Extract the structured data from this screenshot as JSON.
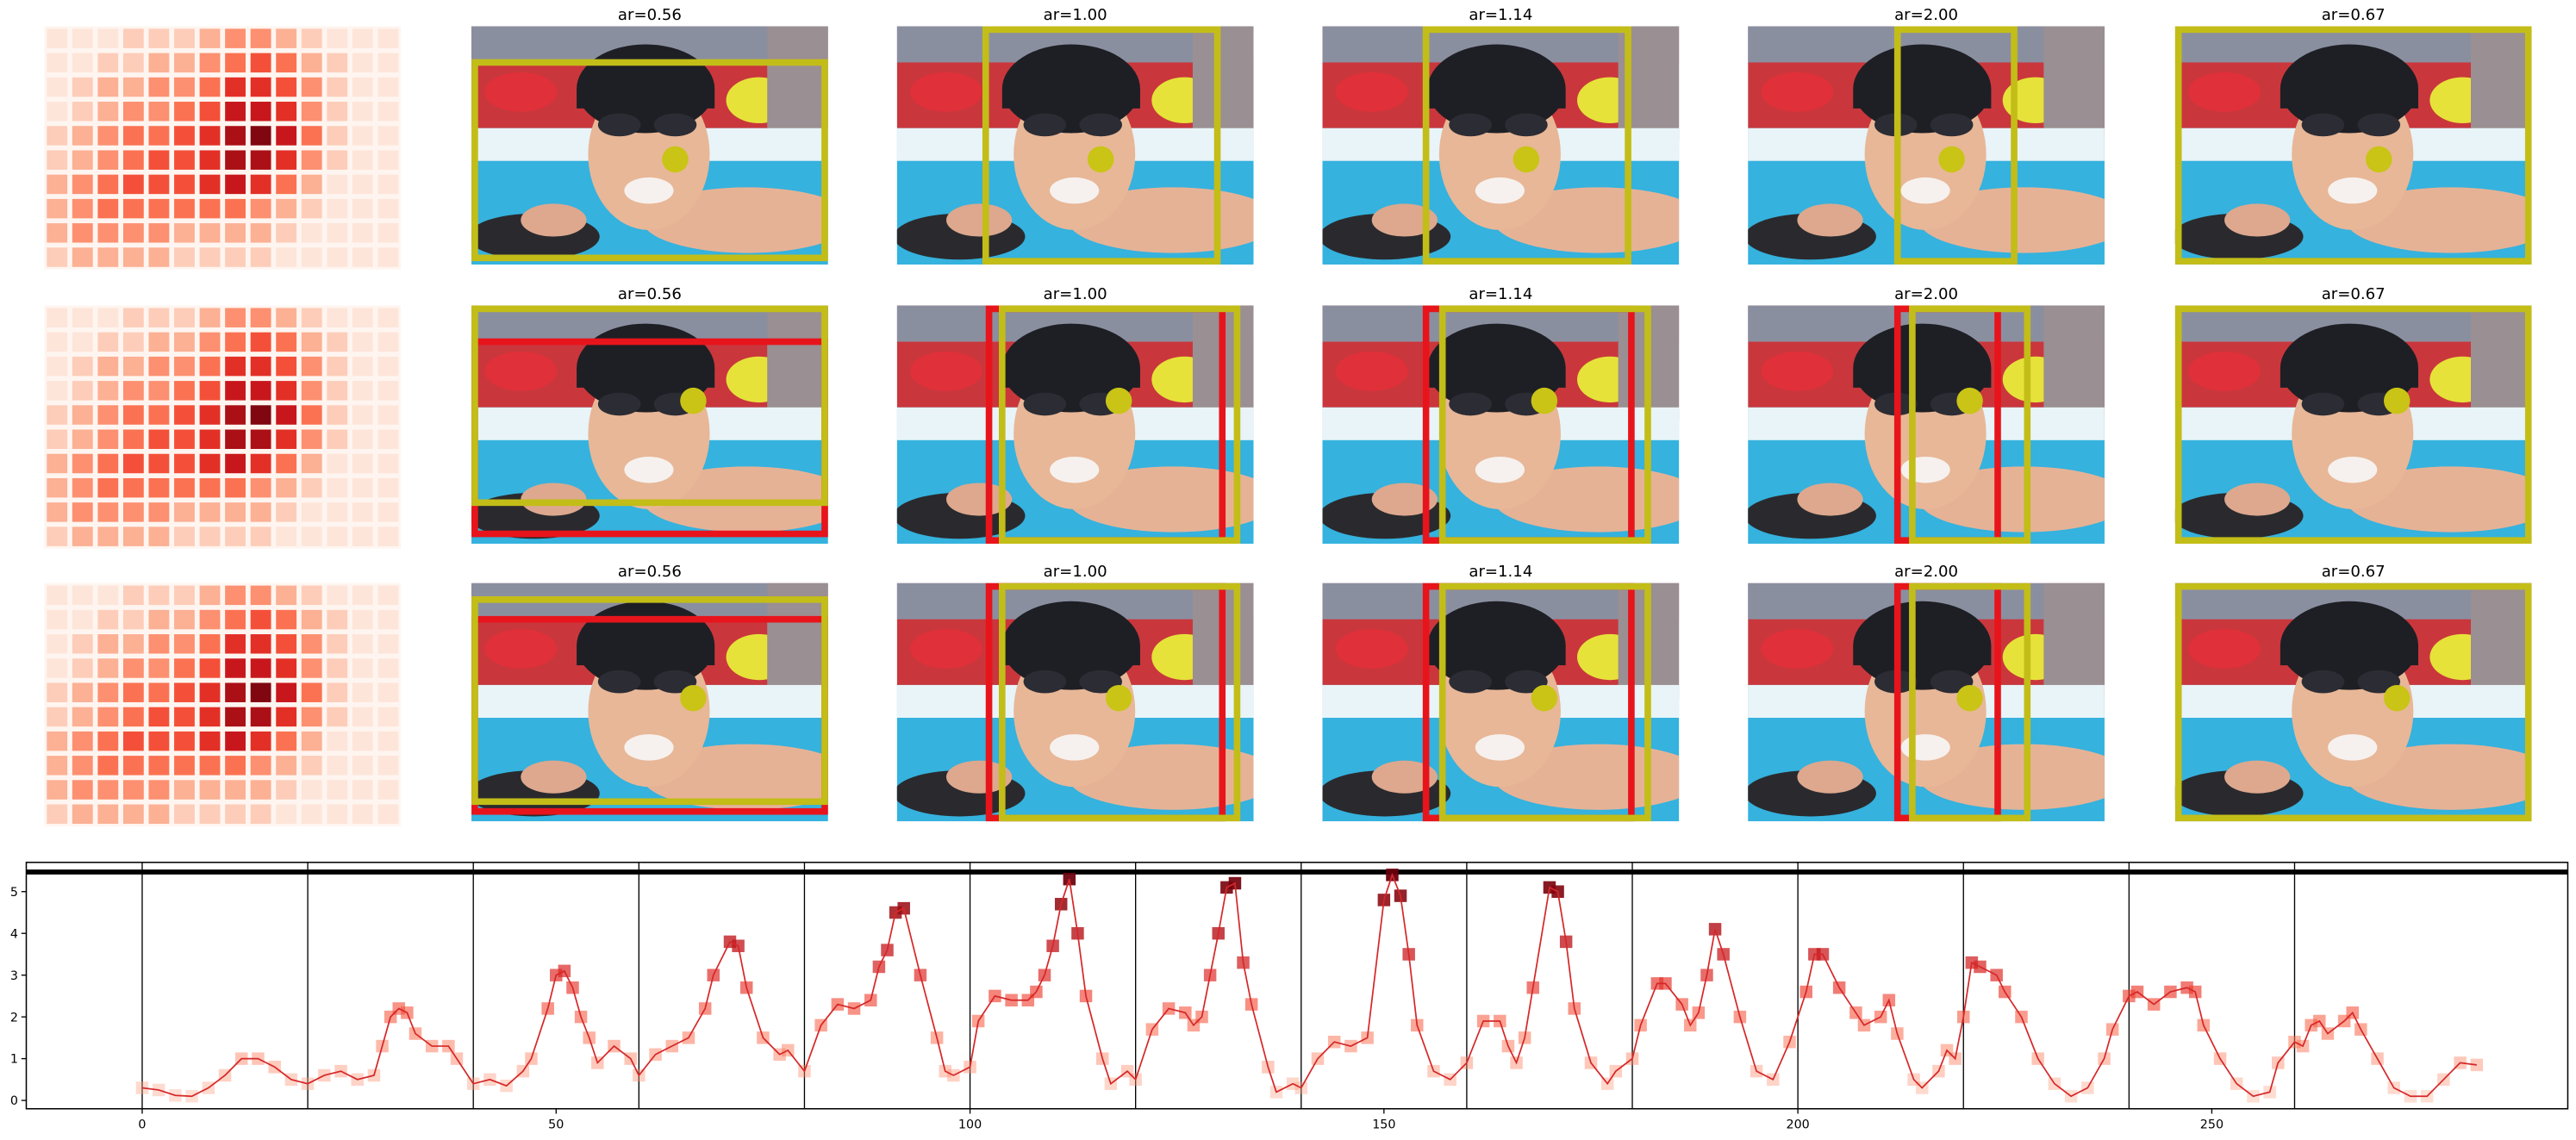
{
  "panel_titles": [
    [
      "ar=0.56",
      "ar=1.00",
      "ar=1.14",
      "ar=2.00",
      "ar=0.67"
    ],
    [
      "ar=0.56",
      "ar=1.00",
      "ar=1.14",
      "ar=2.00",
      "ar=0.67"
    ],
    [
      "ar=0.56",
      "ar=1.00",
      "ar=1.14",
      "ar=2.00",
      "ar=0.67"
    ]
  ],
  "heatmap": [
    [
      0.1,
      0.1,
      0.1,
      0.2,
      0.2,
      0.2,
      0.3,
      0.4,
      0.4,
      0.3,
      0.2,
      0.1,
      0.1,
      0.1
    ],
    [
      0.1,
      0.1,
      0.2,
      0.2,
      0.3,
      0.3,
      0.4,
      0.5,
      0.6,
      0.5,
      0.3,
      0.2,
      0.1,
      0.1
    ],
    [
      0.1,
      0.2,
      0.3,
      0.3,
      0.4,
      0.4,
      0.5,
      0.7,
      0.7,
      0.6,
      0.4,
      0.2,
      0.1,
      0.1
    ],
    [
      0.1,
      0.2,
      0.3,
      0.4,
      0.4,
      0.5,
      0.6,
      0.8,
      0.8,
      0.7,
      0.4,
      0.2,
      0.1,
      0.1
    ],
    [
      0.2,
      0.3,
      0.4,
      0.5,
      0.5,
      0.6,
      0.7,
      0.9,
      1.0,
      0.8,
      0.5,
      0.2,
      0.1,
      0.1
    ],
    [
      0.2,
      0.3,
      0.4,
      0.5,
      0.6,
      0.6,
      0.7,
      0.9,
      0.9,
      0.7,
      0.4,
      0.2,
      0.1,
      0.1
    ],
    [
      0.3,
      0.4,
      0.5,
      0.6,
      0.6,
      0.6,
      0.7,
      0.8,
      0.7,
      0.5,
      0.3,
      0.1,
      0.1,
      0.1
    ],
    [
      0.3,
      0.4,
      0.5,
      0.5,
      0.5,
      0.5,
      0.5,
      0.5,
      0.4,
      0.3,
      0.2,
      0.1,
      0.1,
      0.1
    ],
    [
      0.3,
      0.4,
      0.4,
      0.4,
      0.4,
      0.3,
      0.3,
      0.3,
      0.3,
      0.2,
      0.1,
      0.1,
      0.1,
      0.1
    ],
    [
      0.2,
      0.3,
      0.3,
      0.3,
      0.3,
      0.2,
      0.2,
      0.2,
      0.2,
      0.1,
      0.1,
      0.1,
      0.1,
      0.1
    ]
  ],
  "chart_data": {
    "type": "line",
    "x": [
      0,
      2,
      4,
      6,
      8,
      10,
      12,
      14,
      16,
      18,
      20,
      22,
      24,
      26,
      28,
      29,
      30,
      31,
      32,
      33,
      35,
      37,
      38,
      40,
      42,
      44,
      46,
      47,
      49,
      50,
      51,
      52,
      53,
      54,
      55,
      57,
      59,
      60,
      62,
      64,
      66,
      68,
      69,
      71,
      72,
      73,
      75,
      77,
      78,
      80,
      82,
      84,
      86,
      88,
      89,
      90,
      91,
      92,
      94,
      96,
      97,
      98,
      100,
      101,
      103,
      105,
      107,
      108,
      109,
      110,
      111,
      112,
      113,
      114,
      116,
      117,
      119,
      120,
      122,
      124,
      126,
      127,
      128,
      129,
      130,
      131,
      132,
      133,
      134,
      136,
      137,
      139,
      140,
      142,
      144,
      146,
      148,
      150,
      151,
      152,
      153,
      154,
      156,
      158,
      160,
      162,
      164,
      165,
      166,
      167,
      168,
      170,
      171,
      172,
      173,
      175,
      177,
      178,
      180,
      181,
      183,
      184,
      186,
      187,
      188,
      189,
      190,
      191,
      193,
      195,
      197,
      199,
      201,
      202,
      203,
      205,
      207,
      208,
      210,
      211,
      212,
      214,
      215,
      217,
      218,
      219,
      220,
      221,
      222,
      224,
      225,
      227,
      229,
      231,
      233,
      235,
      237,
      238,
      240,
      241,
      243,
      245,
      247,
      248,
      249,
      251,
      253,
      255,
      257,
      258,
      260,
      261,
      262,
      263,
      264,
      266,
      267,
      268,
      270,
      272,
      274,
      276,
      278,
      280,
      282
    ],
    "series": [
      {
        "color": "#d62728",
        "values": [
          0.3,
          0.25,
          0.12,
          0.1,
          0.3,
          0.6,
          1.0,
          1.0,
          0.8,
          0.5,
          0.4,
          0.6,
          0.7,
          0.5,
          0.6,
          1.3,
          2.0,
          2.2,
          2.1,
          1.6,
          1.3,
          1.3,
          1.0,
          0.4,
          0.5,
          0.35,
          0.7,
          1.0,
          2.2,
          3.0,
          3.1,
          2.7,
          2.0,
          1.5,
          0.9,
          1.3,
          1.0,
          0.6,
          1.1,
          1.3,
          1.5,
          2.2,
          3.0,
          3.8,
          3.7,
          2.7,
          1.5,
          1.1,
          1.2,
          0.7,
          1.8,
          2.3,
          2.2,
          2.4,
          3.2,
          3.6,
          4.5,
          4.6,
          3.0,
          1.5,
          0.7,
          0.6,
          0.8,
          1.9,
          2.5,
          2.4,
          2.4,
          2.6,
          3.0,
          3.7,
          4.7,
          5.3,
          4.0,
          2.5,
          1.0,
          0.4,
          0.7,
          0.5,
          1.7,
          2.2,
          2.1,
          1.8,
          2.0,
          3.0,
          4.0,
          5.1,
          5.2,
          3.3,
          2.3,
          0.8,
          0.2,
          0.4,
          0.3,
          1.0,
          1.4,
          1.3,
          1.5,
          4.8,
          5.4,
          4.9,
          3.5,
          1.8,
          0.7,
          0.5,
          0.9,
          1.9,
          1.9,
          1.3,
          0.9,
          1.5,
          2.7,
          5.1,
          5.0,
          3.8,
          2.2,
          0.9,
          0.4,
          0.7,
          1.0,
          1.8,
          2.8,
          2.8,
          2.3,
          1.8,
          2.1,
          3.0,
          4.1,
          3.5,
          2.0,
          0.7,
          0.5,
          1.4,
          2.6,
          3.5,
          3.5,
          2.7,
          2.1,
          1.8,
          2.0,
          2.4,
          1.6,
          0.5,
          0.3,
          0.7,
          1.2,
          1.0,
          2.0,
          3.3,
          3.2,
          3.0,
          2.6,
          2.0,
          1.0,
          0.4,
          0.1,
          0.3,
          1.0,
          1.7,
          2.5,
          2.6,
          2.3,
          2.6,
          2.7,
          2.6,
          1.8,
          1.0,
          0.4,
          0.1,
          0.2,
          0.9,
          1.4,
          1.3,
          1.8,
          1.9,
          1.6,
          1.9,
          2.1,
          1.7,
          1.0,
          0.3,
          0.1,
          0.1,
          0.5,
          0.9,
          0.85
        ]
      }
    ],
    "marker_cmap": "Reds",
    "xlim": [
      -14,
      293
    ],
    "ylim": [
      -0.2,
      5.7
    ],
    "xticks": [
      0,
      50,
      100,
      150,
      200,
      250
    ],
    "yticks": [
      0,
      1,
      2,
      3,
      4,
      5
    ],
    "vlines": [
      0,
      20,
      40,
      60,
      80,
      100,
      120,
      140,
      160,
      180,
      200,
      220,
      240,
      260
    ],
    "hline": 5.47
  }
}
